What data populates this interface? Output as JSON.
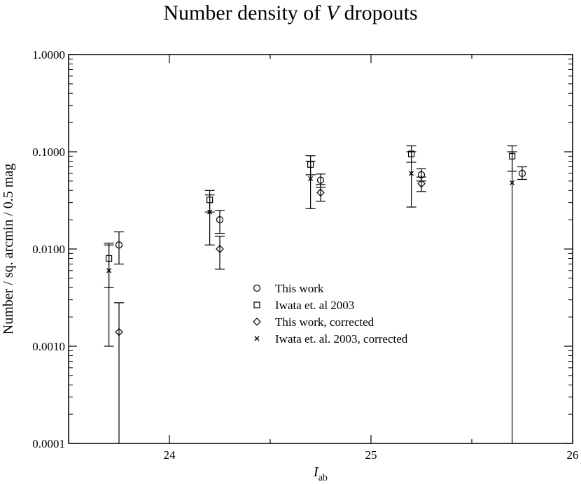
{
  "chart_data": {
    "type": "scatter",
    "title_prefix": "Number density of ",
    "title_italic": "V",
    "title_suffix": " dropouts",
    "xlabel_main": "I",
    "xlabel_sub": "ab",
    "ylabel": "Number / sq. arcmin / 0.5 mag",
    "xlim": [
      23.5,
      26
    ],
    "ylim": [
      0.0001,
      1
    ],
    "yscale": "log",
    "xticks": [
      {
        "value": 24,
        "label": "24"
      },
      {
        "value": 25,
        "label": "25"
      },
      {
        "value": 26,
        "label": "26"
      }
    ],
    "yticks": [
      {
        "value": 1,
        "label": "1.0000"
      },
      {
        "value": 0.1,
        "label": "0.1000"
      },
      {
        "value": 0.01,
        "label": "0.0100"
      },
      {
        "value": 0.001,
        "label": "0.0010"
      },
      {
        "value": 0.0001,
        "label": "0.0001"
      }
    ],
    "legend_position": "center",
    "series": [
      {
        "name": "This work",
        "marker": "circle",
        "points": [
          {
            "x": 23.75,
            "y": 0.011,
            "ylo": 0.007,
            "yhi": 0.015
          },
          {
            "x": 24.25,
            "y": 0.02,
            "ylo": 0.0145,
            "yhi": 0.025
          },
          {
            "x": 24.75,
            "y": 0.051,
            "ylo": 0.043,
            "yhi": 0.059
          },
          {
            "x": 25.25,
            "y": 0.058,
            "ylo": 0.05,
            "yhi": 0.067
          },
          {
            "x": 25.75,
            "y": 0.06,
            "ylo": 0.052,
            "yhi": 0.07
          }
        ]
      },
      {
        "name": "Iwata et. al 2003",
        "marker": "square",
        "points": [
          {
            "x": 23.7,
            "y": 0.008,
            "ylo": 0.004,
            "yhi": 0.0115
          },
          {
            "x": 24.2,
            "y": 0.032,
            "ylo": 0.024,
            "yhi": 0.04
          },
          {
            "x": 24.7,
            "y": 0.074,
            "ylo": 0.058,
            "yhi": 0.091
          },
          {
            "x": 25.2,
            "y": 0.095,
            "ylo": 0.078,
            "yhi": 0.115
          },
          {
            "x": 25.7,
            "y": 0.09,
            "ylo": 0.063,
            "yhi": 0.115
          }
        ]
      },
      {
        "name": "This work, corrected",
        "marker": "diamond",
        "points": [
          {
            "x": 23.75,
            "y": 0.0014,
            "ylo": 0.0001,
            "yhi": 0.0028
          },
          {
            "x": 24.25,
            "y": 0.01,
            "ylo": 0.0062,
            "yhi": 0.0135
          },
          {
            "x": 24.75,
            "y": 0.038,
            "ylo": 0.031,
            "yhi": 0.046
          },
          {
            "x": 25.25,
            "y": 0.047,
            "ylo": 0.039,
            "yhi": 0.055
          },
          {
            "x": 25.75,
            "y": 0.0,
            "ylo": 0.0,
            "yhi": 0.0,
            "hidden": true
          }
        ]
      },
      {
        "name": "Iwata et. al. 2003, corrected",
        "marker": "x",
        "points": [
          {
            "x": 23.7,
            "y": 0.006,
            "ylo": 0.001,
            "yhi": 0.011
          },
          {
            "x": 24.2,
            "y": 0.024,
            "ylo": 0.011,
            "yhi": 0.036
          },
          {
            "x": 24.7,
            "y": 0.053,
            "ylo": 0.026,
            "yhi": 0.08
          },
          {
            "x": 25.2,
            "y": 0.06,
            "ylo": 0.027,
            "yhi": 0.1
          },
          {
            "x": 25.7,
            "y": 0.048,
            "ylo": 0.0001,
            "yhi": 0.1
          }
        ]
      }
    ]
  }
}
